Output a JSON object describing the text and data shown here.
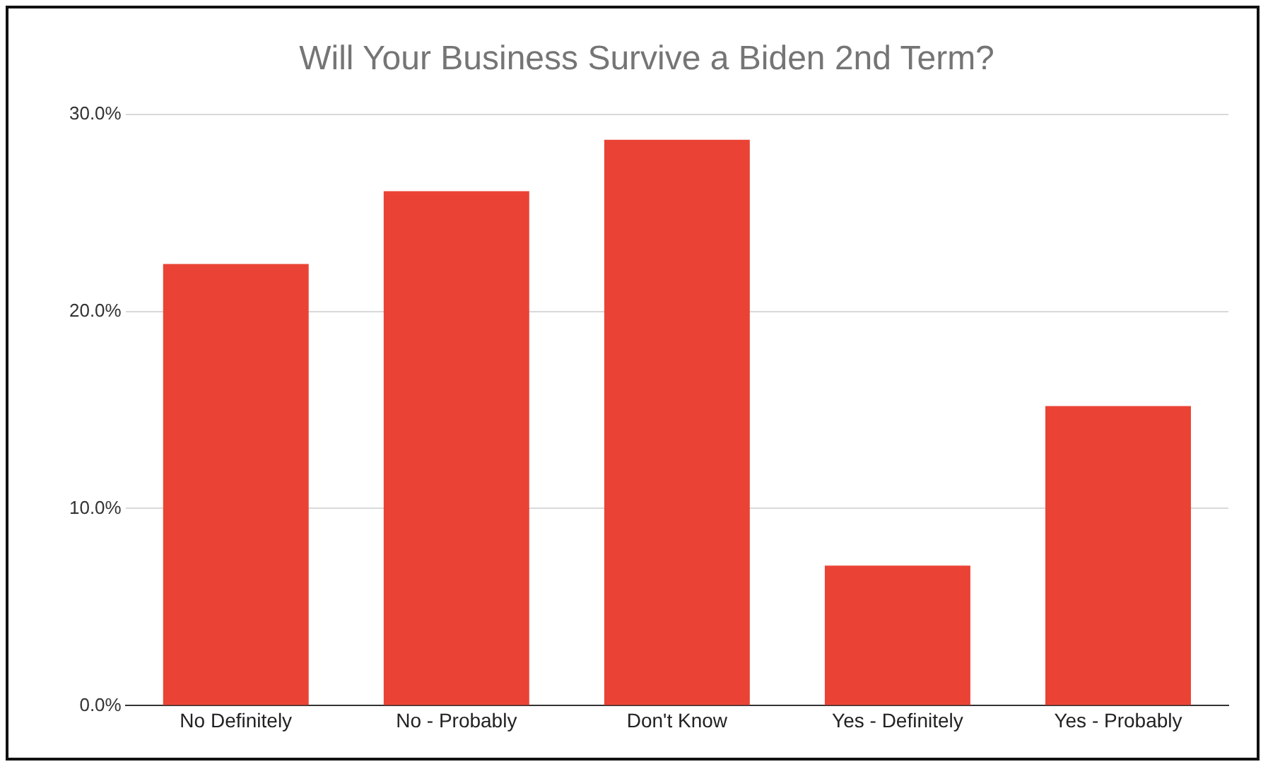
{
  "chart_data": {
    "type": "bar",
    "title": "Will Your Business Survive a Biden 2nd Term?",
    "categories": [
      "No Definitely",
      "No - Probably",
      "Don't Know",
      "Yes - Definitely",
      "Yes - Probably"
    ],
    "values": [
      22.4,
      26.1,
      28.7,
      7.1,
      15.2
    ],
    "color": "#ea4335",
    "ylim": [
      0,
      30
    ],
    "yticks": [
      {
        "value": 0,
        "label": "0.0%"
      },
      {
        "value": 10,
        "label": "10.0%"
      },
      {
        "value": 20,
        "label": "20.0%"
      },
      {
        "value": 30,
        "label": "30.0%"
      }
    ],
    "grid": "y"
  }
}
